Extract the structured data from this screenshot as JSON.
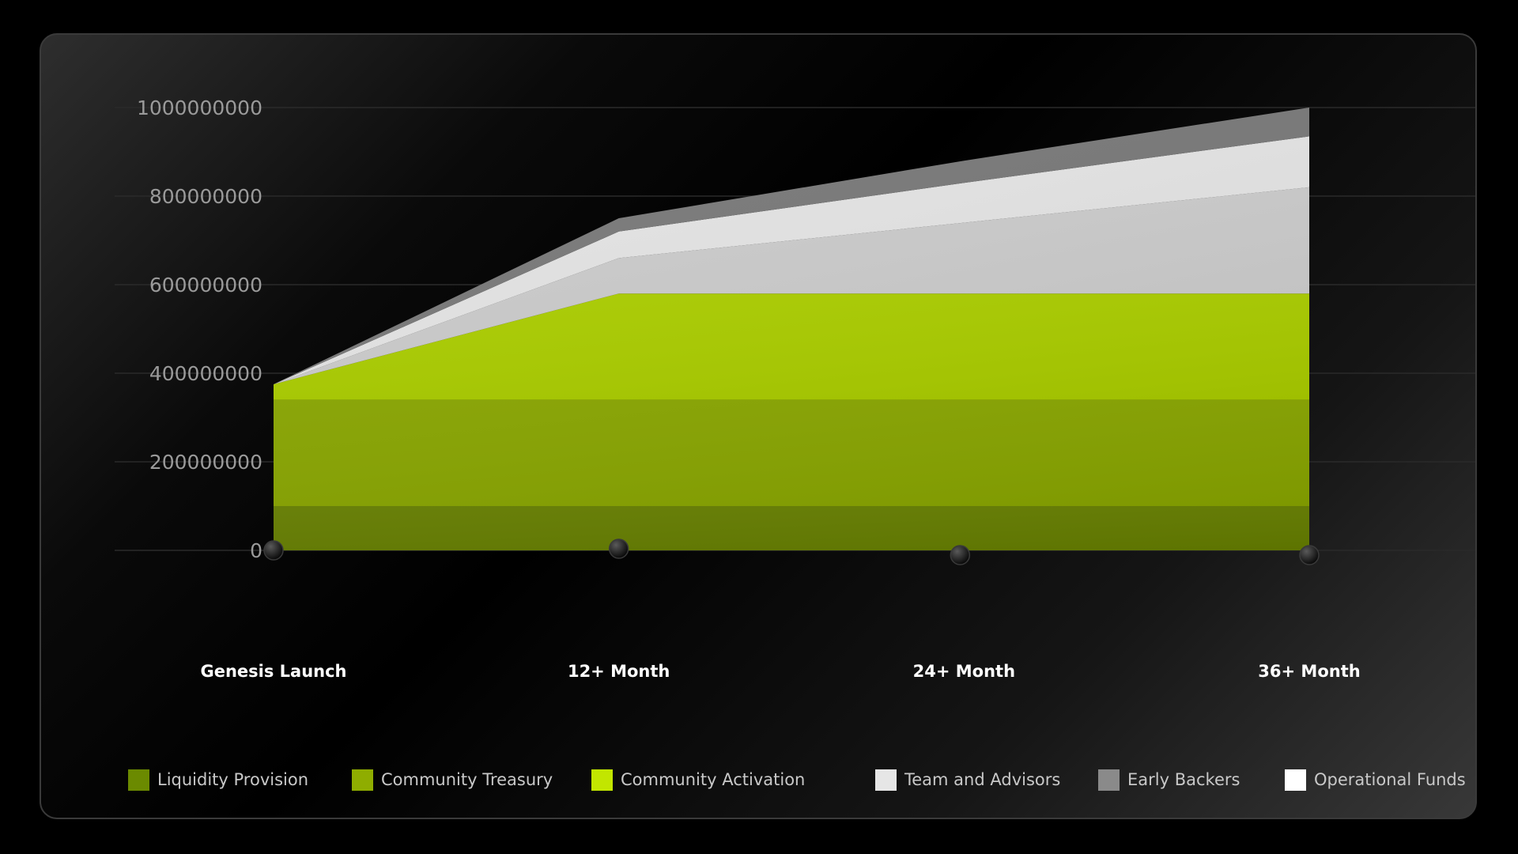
{
  "chart_data": {
    "type": "area",
    "stacked": true,
    "categories": [
      "Genesis Launch",
      "12+ Month",
      "24+ Month",
      "36+ Month"
    ],
    "ylim": [
      0,
      1000000000
    ],
    "yticks": [
      "0",
      "200000000",
      "400000000",
      "600000000",
      "800000000",
      "1000000000"
    ],
    "grid": true,
    "legend_position": "bottom",
    "series": [
      {
        "name": "Liquidity Provision",
        "values": [
          100000000,
          100000000,
          100000000,
          100000000
        ],
        "color": "#637b00"
      },
      {
        "name": "Community Treasury",
        "values": [
          240000000,
          240000000,
          240000000,
          240000000
        ],
        "color": "#86a200"
      },
      {
        "name": "Community Activation",
        "values": [
          35000000,
          240000000,
          240000000,
          240000000
        ],
        "color": "#a9cb00"
      },
      {
        "name": "Team and Advisors",
        "values": [
          0,
          80000000,
          160000000,
          240000000
        ],
        "color": "#cbcbcb"
      },
      {
        "name": "Early Backers",
        "values": [
          0,
          60000000,
          90000000,
          115000000
        ],
        "color": "#e4e4e4"
      },
      {
        "name": "Operational Funds",
        "values": [
          0,
          30000000,
          50000000,
          65000000
        ],
        "color": "#7a7a7a"
      }
    ],
    "legend": [
      {
        "label": "Liquidity Provision",
        "color": "#6b8a00"
      },
      {
        "label": "Community Treasury",
        "color": "#8fad00"
      },
      {
        "label": "Community Activation",
        "color": "#c2e600"
      },
      {
        "label": "Team and Advisors",
        "color": "#e6e6e6"
      },
      {
        "label": "Early Backers",
        "color": "#8a8a8a"
      },
      {
        "label": "Operational Funds",
        "color": "#ffffff"
      }
    ]
  }
}
